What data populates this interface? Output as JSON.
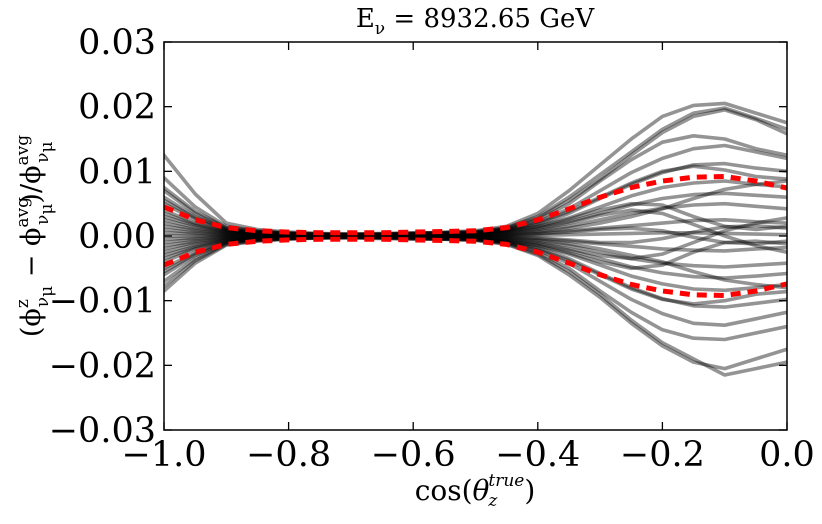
{
  "chart_data": {
    "type": "line",
    "title": "Eν = 8932.65 GeV",
    "title_parts": {
      "main": "E",
      "sub": "ν",
      "rest": " = 8932.65 GeV"
    },
    "xlabel": "cos(θz^true)",
    "xlabel_parts": {
      "pre": "cos(",
      "theta": "θ",
      "sub": "z",
      "sup": "true",
      "post": ")"
    },
    "ylabel": "(ϕzνμ − ϕavgνμ)/ϕavgνμ",
    "xlim": [
      -1.0,
      0.0
    ],
    "ylim": [
      -0.03,
      0.03
    ],
    "x_ticks": [
      -1.0,
      -0.8,
      -0.6,
      -0.4,
      -0.2,
      0.0
    ],
    "x_tick_labels": [
      "−1.0",
      "−0.8",
      "−0.6",
      "−0.4",
      "−0.2",
      "0.0"
    ],
    "y_ticks": [
      -0.03,
      -0.02,
      -0.01,
      0.0,
      0.01,
      0.02,
      0.03
    ],
    "y_tick_labels": [
      "−0.03",
      "−0.02",
      "−0.01",
      "0.00",
      "0.01",
      "0.02",
      "0.03"
    ],
    "grid": false,
    "x": [
      -1.0,
      -0.95,
      -0.9,
      -0.85,
      -0.8,
      -0.75,
      -0.7,
      -0.65,
      -0.6,
      -0.55,
      -0.5,
      -0.45,
      -0.4,
      -0.35,
      -0.3,
      -0.25,
      -0.2,
      -0.15,
      -0.1,
      -0.05,
      0.0
    ],
    "band_series": [
      {
        "name": "upper-band",
        "color": "#ff0000",
        "style": "dashed",
        "values": [
          0.0045,
          0.0025,
          0.0013,
          0.0008,
          0.0006,
          0.0005,
          0.0005,
          0.0005,
          0.0006,
          0.0007,
          0.0008,
          0.0013,
          0.0025,
          0.0042,
          0.006,
          0.0075,
          0.0085,
          0.0091,
          0.0092,
          0.0085,
          0.0074
        ]
      },
      {
        "name": "lower-band",
        "color": "#ff0000",
        "style": "dashed",
        "values": [
          -0.0045,
          -0.0025,
          -0.0013,
          -0.0008,
          -0.0006,
          -0.0005,
          -0.0005,
          -0.0005,
          -0.0006,
          -0.0007,
          -0.0008,
          -0.0013,
          -0.0025,
          -0.0042,
          -0.006,
          -0.0075,
          -0.0085,
          -0.0091,
          -0.0092,
          -0.0085,
          -0.0074
        ]
      }
    ],
    "sample_series": [
      {
        "name": "sample-01",
        "values": [
          0.0125,
          0.0065,
          0.002,
          0.001,
          0.0006,
          0.0004,
          0.0003,
          0.0003,
          0.0004,
          0.0006,
          0.0008,
          0.0015,
          0.0035,
          0.007,
          0.011,
          0.015,
          0.0185,
          0.0202,
          0.0205,
          0.019,
          0.0175
        ]
      },
      {
        "name": "sample-02",
        "values": [
          0.009,
          0.0045,
          0.0015,
          0.0008,
          0.0005,
          0.0003,
          0.0003,
          0.0004,
          0.0005,
          0.0005,
          0.0007,
          0.0013,
          0.003,
          0.006,
          0.0095,
          0.013,
          0.0165,
          0.019,
          0.0198,
          0.0182,
          0.0165
        ]
      },
      {
        "name": "sample-03",
        "values": [
          0.007,
          0.0035,
          0.0012,
          0.0007,
          0.0004,
          0.0002,
          0.0002,
          0.0003,
          0.0004,
          0.0005,
          0.0006,
          0.0011,
          0.0025,
          0.005,
          0.0085,
          0.0118,
          0.0145,
          0.0155,
          0.015,
          0.0135,
          0.0125
        ]
      },
      {
        "name": "sample-04",
        "values": [
          0.006,
          0.003,
          0.001,
          0.0006,
          0.0004,
          0.0003,
          0.0002,
          0.0002,
          0.0003,
          0.0004,
          0.0005,
          0.001,
          0.0022,
          0.0042,
          0.007,
          0.0098,
          0.012,
          0.0135,
          0.014,
          0.013,
          0.012
        ]
      },
      {
        "name": "sample-05",
        "values": [
          0.005,
          0.0025,
          0.0009,
          0.0005,
          0.0003,
          0.0002,
          0.0002,
          0.0002,
          0.0003,
          0.0004,
          0.0005,
          0.0009,
          0.0018,
          0.0035,
          0.0058,
          0.008,
          0.0098,
          0.011,
          0.0112,
          0.0105,
          0.01
        ]
      },
      {
        "name": "sample-06",
        "values": [
          0.004,
          0.002,
          0.0008,
          0.0004,
          0.0003,
          0.0002,
          0.0001,
          0.0002,
          0.0002,
          0.0003,
          0.0004,
          0.0008,
          0.0015,
          0.0028,
          0.0045,
          0.0062,
          0.0075,
          0.0082,
          0.0085,
          0.008,
          0.0076
        ]
      },
      {
        "name": "sample-07",
        "values": [
          0.003,
          0.0016,
          0.0006,
          0.0003,
          0.0002,
          0.0001,
          0.0001,
          0.0001,
          0.0002,
          0.0002,
          0.0003,
          0.0006,
          0.0012,
          0.0022,
          0.0035,
          0.0048,
          0.0058,
          0.0064,
          0.0066,
          0.0063,
          0.006
        ]
      },
      {
        "name": "sample-08",
        "values": [
          0.002,
          0.001,
          0.0004,
          0.0002,
          0.0001,
          0.0001,
          0.0,
          0.0001,
          0.0001,
          0.0002,
          0.0002,
          0.0004,
          0.0008,
          0.0015,
          0.0025,
          0.0035,
          0.0043,
          0.0048,
          0.005,
          0.0046,
          0.0042
        ]
      },
      {
        "name": "sample-09",
        "values": [
          0.001,
          0.0005,
          0.0002,
          0.0001,
          0.0,
          0.0,
          0.0,
          0.0,
          0.0001,
          0.0001,
          0.0001,
          0.0002,
          0.0004,
          0.0008,
          0.0012,
          0.0016,
          0.002,
          0.0024,
          0.0025,
          0.0022,
          0.002
        ]
      },
      {
        "name": "sample-10",
        "values": [
          0.0,
          0.0,
          0.0,
          0.0,
          0.0,
          0.0,
          0.0,
          0.0,
          0.0,
          0.0,
          0.0,
          0.0,
          0.0001,
          0.0002,
          0.0003,
          0.0004,
          0.0005,
          0.0005,
          0.0004,
          0.0003,
          0.0002
        ]
      },
      {
        "name": "sample-11",
        "values": [
          -0.001,
          -0.0005,
          -0.0002,
          -0.0001,
          0.0,
          0.0,
          0.0,
          0.0,
          -0.0001,
          -0.0001,
          -0.0001,
          -0.0002,
          -0.0004,
          -0.0008,
          -0.0012,
          -0.0016,
          -0.002,
          -0.0022,
          -0.0023,
          -0.002,
          -0.0018
        ]
      },
      {
        "name": "sample-12",
        "values": [
          -0.002,
          -0.001,
          -0.0004,
          -0.0002,
          -0.0001,
          -0.0001,
          0.0,
          -0.0001,
          -0.0001,
          -0.0002,
          -0.0002,
          -0.0004,
          -0.0008,
          -0.0015,
          -0.0025,
          -0.0035,
          -0.0042,
          -0.0046,
          -0.0048,
          -0.0045,
          -0.0042
        ]
      },
      {
        "name": "sample-13",
        "values": [
          -0.003,
          -0.0016,
          -0.0006,
          -0.0003,
          -0.0002,
          -0.0001,
          -0.0001,
          -0.0001,
          -0.0002,
          -0.0002,
          -0.0003,
          -0.0006,
          -0.0012,
          -0.0022,
          -0.0035,
          -0.0048,
          -0.0057,
          -0.0063,
          -0.0065,
          -0.0062,
          -0.0058
        ]
      },
      {
        "name": "sample-14",
        "values": [
          -0.004,
          -0.002,
          -0.0008,
          -0.0004,
          -0.0003,
          -0.0002,
          -0.0001,
          -0.0002,
          -0.0002,
          -0.0003,
          -0.0004,
          -0.0008,
          -0.0015,
          -0.0028,
          -0.0045,
          -0.0062,
          -0.0074,
          -0.0082,
          -0.0084,
          -0.008,
          -0.0075
        ]
      },
      {
        "name": "sample-15",
        "values": [
          -0.005,
          -0.0025,
          -0.0009,
          -0.0005,
          -0.0003,
          -0.0002,
          -0.0002,
          -0.0002,
          -0.0003,
          -0.0004,
          -0.0005,
          -0.0009,
          -0.0018,
          -0.0035,
          -0.0058,
          -0.008,
          -0.0097,
          -0.0108,
          -0.011,
          -0.0104,
          -0.0098
        ]
      },
      {
        "name": "sample-16",
        "values": [
          -0.006,
          -0.003,
          -0.001,
          -0.0006,
          -0.0004,
          -0.0003,
          -0.0002,
          -0.0002,
          -0.0003,
          -0.0004,
          -0.0005,
          -0.001,
          -0.0022,
          -0.0042,
          -0.007,
          -0.0098,
          -0.012,
          -0.0135,
          -0.0138,
          -0.0128,
          -0.0118
        ]
      },
      {
        "name": "sample-17",
        "values": [
          -0.007,
          -0.0035,
          -0.0012,
          -0.0007,
          -0.0004,
          -0.0002,
          -0.0002,
          -0.0003,
          -0.0004,
          -0.0005,
          -0.0006,
          -0.0011,
          -0.0025,
          -0.005,
          -0.0085,
          -0.0118,
          -0.0145,
          -0.0158,
          -0.016,
          -0.015,
          -0.014
        ]
      },
      {
        "name": "sample-18",
        "values": [
          -0.0085,
          -0.0042,
          -0.0014,
          -0.0008,
          -0.0005,
          -0.0003,
          -0.0003,
          -0.0004,
          -0.0005,
          -0.0005,
          -0.0007,
          -0.0013,
          -0.003,
          -0.006,
          -0.0095,
          -0.0135,
          -0.017,
          -0.0195,
          -0.0205,
          -0.019,
          -0.0175
        ]
      },
      {
        "name": "sample-19",
        "values": [
          -0.0078,
          -0.0038,
          -0.0013,
          -0.0007,
          -0.0004,
          -0.0003,
          -0.0002,
          -0.0003,
          -0.0004,
          -0.0005,
          -0.0006,
          -0.0012,
          -0.0028,
          -0.0055,
          -0.009,
          -0.013,
          -0.0165,
          -0.019,
          -0.0215,
          -0.0205,
          -0.0195
        ]
      },
      {
        "name": "sample-20",
        "values": [
          0.0075,
          0.0038,
          0.0013,
          0.0007,
          0.0004,
          0.0003,
          0.0002,
          0.0003,
          0.0004,
          0.0005,
          0.0006,
          0.0012,
          0.0028,
          0.0055,
          0.0088,
          0.0125,
          0.016,
          0.0185,
          0.0195,
          0.018,
          0.0158
        ]
      },
      {
        "name": "sample-21",
        "values": [
          0.0035,
          0.0018,
          0.0007,
          0.0004,
          0.0002,
          0.0001,
          0.0001,
          0.0002,
          0.0002,
          0.0003,
          0.0003,
          0.0007,
          0.0014,
          0.0026,
          0.004,
          0.005,
          0.0048,
          0.003,
          0.0015,
          0.001,
          0.0015
        ]
      },
      {
        "name": "sample-22",
        "values": [
          -0.0035,
          -0.0018,
          -0.0007,
          -0.0004,
          -0.0002,
          -0.0001,
          -0.0001,
          -0.0002,
          -0.0002,
          -0.0003,
          -0.0003,
          -0.0007,
          -0.0014,
          -0.0026,
          -0.004,
          -0.005,
          -0.0045,
          -0.0025,
          -0.001,
          -0.0008,
          -0.0012
        ]
      },
      {
        "name": "sample-23",
        "values": [
          0.0015,
          0.0008,
          0.0003,
          0.0002,
          0.0001,
          0.0,
          0.0,
          0.0001,
          0.0001,
          0.0001,
          0.0002,
          0.0003,
          0.0006,
          0.0012,
          0.002,
          0.003,
          0.0042,
          0.0058,
          0.0072,
          0.008,
          0.0085
        ]
      },
      {
        "name": "sample-24",
        "values": [
          -0.0015,
          -0.0008,
          -0.0003,
          -0.0002,
          -0.0001,
          0.0,
          0.0,
          -0.0001,
          -0.0001,
          -0.0001,
          -0.0002,
          -0.0003,
          -0.0006,
          -0.0012,
          -0.002,
          -0.003,
          -0.004,
          -0.0055,
          -0.0068,
          -0.0075,
          -0.008
        ]
      },
      {
        "name": "sample-25",
        "values": [
          0.0025,
          0.0013,
          0.0005,
          0.0003,
          0.0002,
          0.0001,
          0.0001,
          0.0001,
          0.0001,
          0.0002,
          0.0002,
          0.0005,
          0.001,
          0.002,
          0.0032,
          0.004,
          0.0035,
          0.0018,
          0.0,
          -0.0015,
          -0.0025
        ]
      },
      {
        "name": "sample-26",
        "values": [
          -0.0025,
          -0.0013,
          -0.0005,
          -0.0003,
          -0.0002,
          -0.0001,
          -0.0001,
          -0.0001,
          -0.0001,
          -0.0002,
          -0.0002,
          -0.0005,
          -0.001,
          -0.002,
          -0.003,
          -0.0035,
          -0.0028,
          -0.001,
          0.0008,
          0.002,
          0.0028
        ]
      },
      {
        "name": "sample-27",
        "values": [
          0.0055,
          0.0028,
          0.001,
          0.0005,
          0.0003,
          0.0002,
          0.0002,
          0.0002,
          0.0003,
          0.0004,
          0.0005,
          0.0009,
          0.002,
          0.0038,
          0.006,
          0.0082,
          0.01,
          0.0108,
          0.0102,
          0.0092,
          0.0088
        ]
      },
      {
        "name": "sample-28",
        "values": [
          -0.0055,
          -0.0028,
          -0.001,
          -0.0005,
          -0.0003,
          -0.0002,
          -0.0002,
          -0.0002,
          -0.0003,
          -0.0004,
          -0.0005,
          -0.0009,
          -0.002,
          -0.0038,
          -0.006,
          -0.0082,
          -0.0098,
          -0.0105,
          -0.01,
          -0.009,
          -0.0086
        ]
      },
      {
        "name": "sample-29",
        "values": [
          0.0005,
          0.0003,
          0.0001,
          0.0001,
          0.0,
          0.0,
          0.0,
          0.0,
          0.0,
          0.0001,
          0.0001,
          0.0001,
          0.0003,
          0.0006,
          0.001,
          0.0012,
          0.0008,
          -0.0002,
          -0.001,
          -0.0012,
          -0.0008
        ]
      },
      {
        "name": "sample-30",
        "values": [
          -0.0005,
          -0.0003,
          -0.0001,
          -0.0001,
          0.0,
          0.0,
          0.0,
          0.0,
          0.0,
          -0.0001,
          -0.0001,
          -0.0001,
          -0.0003,
          -0.0006,
          -0.001,
          -0.001,
          -0.0004,
          0.0006,
          0.0014,
          0.0016,
          0.0012
        ]
      }
    ],
    "sample_color": "#000000",
    "sample_opacity": 0.42
  }
}
